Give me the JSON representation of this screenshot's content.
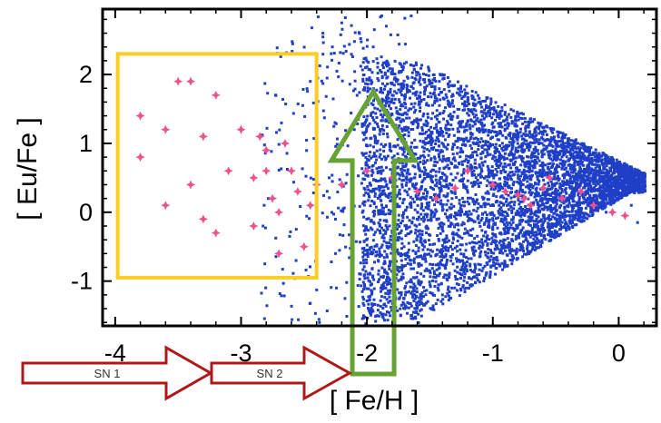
{
  "chart_data": {
    "type": "scatter",
    "title": "",
    "xlabel": "[ Fe/H ]",
    "ylabel": "[ Eu/Fe ]",
    "xlim": [
      -4.1,
      0.3
    ],
    "ylim": [
      -1.65,
      2.95
    ],
    "x_ticks": [
      "-4",
      "-3",
      "-2",
      "-1",
      "0"
    ],
    "y_ticks": [
      "-1",
      "0",
      "1",
      "2"
    ],
    "colors": {
      "model_points": "#1f3fc7",
      "observed_stars": "#f0508c",
      "selection_box": "#ffcc22",
      "upward_arrow": "#66a332",
      "sn_arrows": "#b01818"
    },
    "series": [
      {
        "marker": "square",
        "color": "#1f3fc7",
        "points": [
          [
            -2.35,
            2.6
          ],
          [
            -2.2,
            2.75
          ],
          [
            -2.45,
            1.9
          ],
          [
            -2.3,
            0.5
          ],
          [
            -2.25,
            -0.6
          ],
          [
            -2.1,
            1.2
          ],
          [
            -2.05,
            -0.9
          ],
          [
            -1.95,
            2.4
          ],
          [
            -1.9,
            0.8
          ],
          [
            -1.85,
            -1.1
          ],
          [
            -1.8,
            1.7
          ],
          [
            -1.75,
            -0.4
          ],
          [
            -1.7,
            -1.4
          ],
          [
            -1.65,
            1.5
          ],
          [
            -1.6,
            0.2
          ],
          [
            -1.55,
            -1.35
          ],
          [
            -1.5,
            1.9
          ],
          [
            -1.45,
            0.9
          ],
          [
            -1.4,
            -1.2
          ],
          [
            -1.35,
            1.4
          ],
          [
            -1.3,
            0.3
          ],
          [
            -1.25,
            -0.9
          ],
          [
            -1.2,
            1.6
          ],
          [
            -1.15,
            0.6
          ],
          [
            -1.1,
            -0.6
          ],
          [
            -1.0,
            1.3
          ],
          [
            -0.95,
            0.1
          ],
          [
            -0.9,
            -0.3
          ],
          [
            -0.8,
            1.1
          ],
          [
            -0.75,
            0.5
          ],
          [
            -0.7,
            -0.1
          ],
          [
            -0.6,
            0.9
          ],
          [
            -0.5,
            0.3
          ],
          [
            -0.4,
            -0.2
          ],
          [
            -0.3,
            0.7
          ],
          [
            -0.2,
            0.2
          ],
          [
            -0.1,
            0.0
          ],
          [
            0.0,
            0.5
          ],
          [
            0.1,
            0.1
          ],
          [
            0.15,
            -0.15
          ]
        ]
      },
      {
        "marker": "star",
        "color": "#f0508c",
        "points": [
          [
            -3.5,
            1.9
          ],
          [
            -3.4,
            1.9
          ],
          [
            -3.2,
            1.7
          ],
          [
            -3.8,
            1.4
          ],
          [
            -3.6,
            1.2
          ],
          [
            -3.3,
            1.1
          ],
          [
            -3.0,
            1.2
          ],
          [
            -2.85,
            1.1
          ],
          [
            -2.8,
            0.9
          ],
          [
            -2.9,
            0.5
          ],
          [
            -3.1,
            0.6
          ],
          [
            -3.4,
            0.4
          ],
          [
            -3.6,
            0.1
          ],
          [
            -3.8,
            0.8
          ],
          [
            -2.75,
            0.2
          ],
          [
            -2.7,
            0.0
          ],
          [
            -2.9,
            -0.2
          ],
          [
            -3.2,
            -0.3
          ],
          [
            -3.3,
            -0.1
          ],
          [
            -2.6,
            0.6
          ],
          [
            -2.55,
            0.3
          ],
          [
            -2.5,
            -0.5
          ],
          [
            -2.7,
            -0.6
          ],
          [
            -2.45,
            0.1
          ],
          [
            -2.8,
            0.6
          ],
          [
            -2.65,
            1.0
          ],
          [
            -2.4,
            0.4
          ],
          [
            -2.2,
            0.4
          ],
          [
            -2.0,
            0.6
          ],
          [
            -1.8,
            0.5
          ],
          [
            -1.6,
            0.3
          ],
          [
            -1.45,
            0.2
          ],
          [
            -1.3,
            0.35
          ],
          [
            -1.2,
            0.6
          ],
          [
            -1.0,
            0.4
          ],
          [
            -0.9,
            0.3
          ],
          [
            -0.8,
            0.25
          ],
          [
            -0.75,
            0.2
          ],
          [
            -0.7,
            0.1
          ],
          [
            -0.6,
            0.35
          ],
          [
            -0.55,
            0.5
          ],
          [
            -0.45,
            0.2
          ],
          [
            -0.3,
            0.3
          ],
          [
            -0.2,
            0.1
          ],
          [
            -0.05,
            0.0
          ],
          [
            0.05,
            -0.05
          ]
        ]
      }
    ],
    "annotations": {
      "box": {
        "x_range": [
          -3.98,
          -2.4
        ],
        "y_range": [
          -0.95,
          2.3
        ]
      },
      "upward_arrow": {
        "x_center": -1.95,
        "y_base": -1.65,
        "y_tip": 1.75
      },
      "sn_arrows": [
        "SN 1",
        "SN 2"
      ]
    }
  }
}
